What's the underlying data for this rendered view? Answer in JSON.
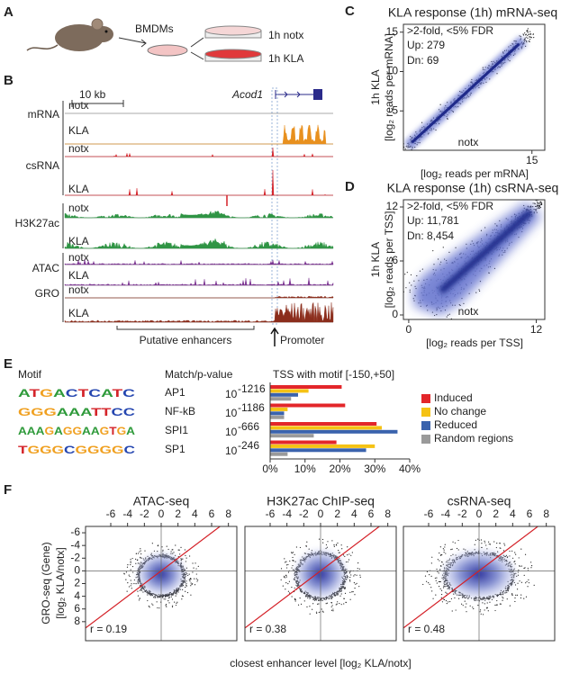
{
  "panels": {
    "a": {
      "label": "A",
      "cells": "BMDMs",
      "conditions": [
        "1h notx",
        "1h KLA"
      ]
    },
    "b": {
      "label": "B",
      "scale_bar": "10 kb",
      "gene": "Acod1",
      "tracks": [
        {
          "assay": "mRNA",
          "samples": [
            "notx",
            "KLA"
          ]
        },
        {
          "assay": "csRNA",
          "samples": [
            "notx",
            "KLA"
          ]
        },
        {
          "assay": "H3K27ac",
          "samples": [
            "notx",
            "KLA"
          ]
        },
        {
          "assay": "ATAC",
          "samples": [
            "notx",
            "KLA"
          ]
        },
        {
          "assay": "GRO",
          "samples": [
            "notx",
            "KLA"
          ]
        }
      ],
      "enhancers": "Putative enhancers",
      "promoter": "Promoter"
    },
    "c": {
      "label": "C",
      "title": "KLA response (1h) mRNA-seq",
      "threshold": ">2-fold, <5% FDR",
      "up": "Up: 279",
      "down": "Dn: 69",
      "y_label": "1h KLA",
      "y_unit": "[log₂ reads per mRNA]",
      "x_label": "notx",
      "x_unit": "[log₂ reads per mRNA]",
      "xlim": [
        0,
        16.5
      ],
      "xticks": [
        15
      ],
      "ylim": [
        0,
        16
      ],
      "yticks": [
        5,
        10,
        15
      ]
    },
    "d": {
      "label": "D",
      "title": "KLA response (1h) csRNA-seq",
      "threshold": ">2-fold, <5% FDR",
      "up": "Up: 11,781",
      "down": "Dn: 8,454",
      "y_label": "1h KLA",
      "y_unit": "[log₂ reads per TSS]",
      "x_label": "notx",
      "x_unit": "[log₂ reads per TSS]",
      "xlim": [
        -0.5,
        12.8
      ],
      "xticks": [
        0,
        12
      ],
      "ylim": [
        -0.5,
        12.8
      ],
      "yticks": [
        0,
        6,
        12
      ]
    },
    "e": {
      "label": "E",
      "headers": [
        "Motif",
        "Match/p-value",
        "TSS with motif [-150,+50]"
      ],
      "motifs": [
        {
          "logo": "ATGACTCATC",
          "name": "AP1",
          "p_base": "10",
          "p_exp": "-1216"
        },
        {
          "logo": "GGGAAATTCC",
          "name": "NF-kB",
          "p_base": "10",
          "p_exp": "-1186"
        },
        {
          "logo": "AAAGAGGAAGTGA",
          "name": "SPI1",
          "p_base": "10",
          "p_exp": "-666"
        },
        {
          "logo": "TGGGCGGGGC",
          "name": "SP1",
          "p_base": "10",
          "p_exp": "-246"
        }
      ],
      "series": [
        {
          "name": "Induced",
          "color": "#e3262a",
          "values": [
            20.5,
            21.5,
            30.5,
            19
          ]
        },
        {
          "name": "No change",
          "color": "#f5c214",
          "values": [
            11,
            5,
            32,
            30
          ]
        },
        {
          "name": "Reduced",
          "color": "#3a63ad",
          "values": [
            8,
            4,
            36.5,
            27.5
          ]
        },
        {
          "name": "Random regions",
          "color": "#9a9a9a",
          "values": [
            6,
            4,
            12.5,
            5
          ]
        }
      ],
      "xlim": [
        0,
        40
      ],
      "xticks": [
        {
          "value": 0,
          "label": "0%"
        },
        {
          "value": 10,
          "label": "10%"
        },
        {
          "value": 20,
          "label": "20%"
        },
        {
          "value": 30,
          "label": "30%"
        },
        {
          "value": 40,
          "label": "40%"
        }
      ]
    },
    "f": {
      "label": "F",
      "plots": [
        {
          "title": "ATAC-seq",
          "r": "r = 0.19"
        },
        {
          "title": "H3K27ac ChIP-seq",
          "r": "r = 0.38"
        },
        {
          "title": "csRNA-seq",
          "r": "r = 0.48"
        }
      ],
      "y_label": "GRO-seq (Gene)",
      "y_unit": "[log₂ KLA/notx]",
      "x_label": "closest enhancer level [log₂ KLA/notx]",
      "xlim": [
        -9,
        9
      ],
      "xticks": [
        -6,
        -4,
        -2,
        0,
        2,
        4,
        6,
        8
      ],
      "ylim": [
        -7,
        11
      ],
      "yticks": [
        -6,
        -4,
        -2,
        0,
        2,
        4,
        6,
        8
      ]
    }
  }
}
